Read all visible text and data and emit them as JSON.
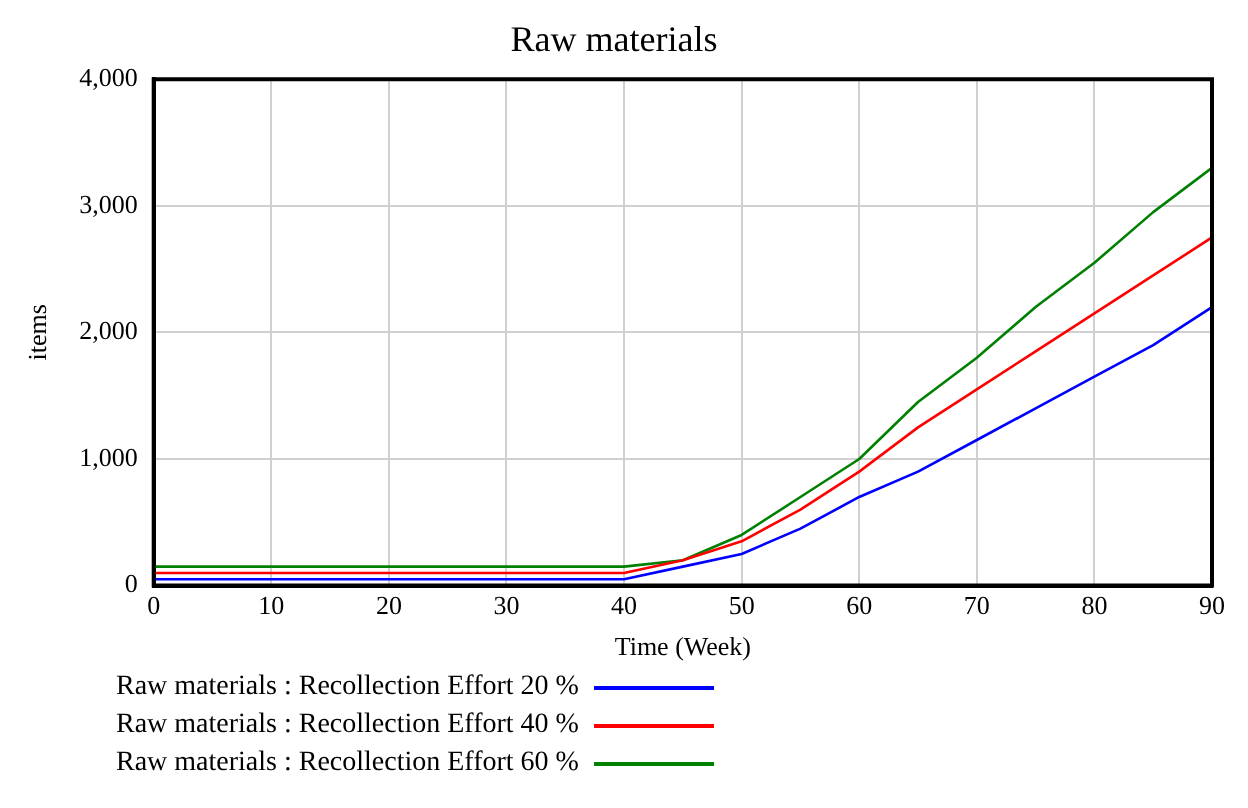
{
  "chart_data": {
    "type": "line",
    "title": "Raw materials",
    "xlabel": "Time (Week)",
    "ylabel": "items",
    "xlim": [
      0,
      90
    ],
    "xticks": [
      0,
      10,
      20,
      30,
      40,
      50,
      60,
      70,
      80,
      90
    ],
    "ylim": [
      0,
      4000
    ],
    "yticks": [
      0,
      {
        "value": 1000,
        "label": "1,000"
      },
      {
        "value": 2000,
        "label": "2,000"
      },
      {
        "value": 3000,
        "label": "3,000"
      },
      {
        "value": 4000,
        "label": "4,000"
      }
    ],
    "grid": true,
    "legend": "bottom",
    "marker": "none",
    "line_style": "solid",
    "series": [
      {
        "name": "Raw materials : Recollection Effort 20 %",
        "color": "#0000ff",
        "x": [
          0,
          40,
          45,
          50,
          55,
          60,
          65,
          70,
          75,
          80,
          85,
          90
        ],
        "values": [
          50,
          50,
          150,
          250,
          450,
          700,
          900,
          1150,
          1400,
          1650,
          1900,
          2200
        ]
      },
      {
        "name": "Raw materials : Recollection Effort 40 %",
        "color": "#ff0000",
        "x": [
          0,
          40,
          45,
          50,
          55,
          60,
          65,
          70,
          75,
          80,
          85,
          90
        ],
        "values": [
          100,
          100,
          200,
          350,
          600,
          900,
          1250,
          1550,
          1850,
          2150,
          2450,
          2750
        ]
      },
      {
        "name": "Raw materials : Recollection Effort 60 %",
        "color": "#008000",
        "x": [
          0,
          40,
          45,
          50,
          55,
          60,
          65,
          70,
          75,
          80,
          85,
          90
        ],
        "values": [
          150,
          150,
          200,
          400,
          700,
          1000,
          1450,
          1800,
          2200,
          2550,
          2950,
          3300
        ]
      }
    ]
  }
}
